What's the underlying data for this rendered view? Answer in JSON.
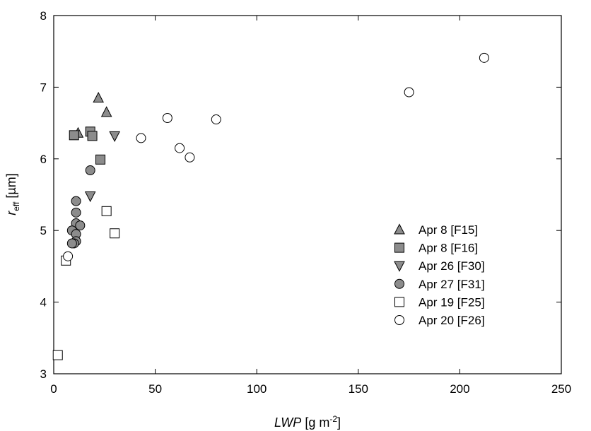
{
  "chart_data": {
    "type": "scatter",
    "xlabel": {
      "main": "LWP",
      "unit_pre": " [g m",
      "unit_sup": "-2",
      "unit_post": "]"
    },
    "ylabel": {
      "main": "r",
      "sub": "eff",
      "unit": " [µm]"
    },
    "xlim": [
      0,
      250
    ],
    "ylim": [
      3,
      8
    ],
    "xticks": [
      0,
      50,
      100,
      150,
      200,
      250
    ],
    "yticks": [
      3,
      4,
      5,
      6,
      7,
      8
    ],
    "grid": false,
    "legend_position": "lower-right",
    "series": [
      {
        "name": "Apr 8 [F15]",
        "marker": "triangle-up",
        "fill": "#8c8c8c",
        "points": [
          [
            12,
            6.36
          ],
          [
            22,
            6.85
          ],
          [
            26,
            6.65
          ]
        ]
      },
      {
        "name": "Apr 8 [F16]",
        "marker": "square",
        "fill": "#8c8c8c",
        "points": [
          [
            10,
            6.33
          ],
          [
            18,
            6.38
          ],
          [
            19,
            6.32
          ],
          [
            23,
            5.99
          ]
        ]
      },
      {
        "name": "Apr 26 [F30]",
        "marker": "triangle-down",
        "fill": "#8c8c8c",
        "points": [
          [
            18,
            5.48
          ],
          [
            30,
            6.32
          ]
        ]
      },
      {
        "name": "Apr 27 [F31]",
        "marker": "circle",
        "fill": "#8c8c8c",
        "points": [
          [
            18,
            5.84
          ],
          [
            11,
            5.41
          ],
          [
            11,
            5.25
          ],
          [
            11,
            5.1
          ],
          [
            13,
            5.07
          ],
          [
            9,
            5.0
          ],
          [
            11,
            4.95
          ],
          [
            11,
            4.85
          ],
          [
            10,
            4.82
          ],
          [
            9,
            4.82
          ]
        ]
      },
      {
        "name": "Apr 19 [F25]",
        "marker": "square",
        "fill": "#ffffff",
        "points": [
          [
            2,
            3.26
          ],
          [
            6,
            4.58
          ],
          [
            26,
            5.27
          ],
          [
            30,
            4.96
          ]
        ]
      },
      {
        "name": "Apr 20 [F26]",
        "marker": "circle",
        "fill": "#ffffff",
        "points": [
          [
            7,
            4.64
          ],
          [
            43,
            6.29
          ],
          [
            56,
            6.57
          ],
          [
            62,
            6.15
          ],
          [
            67,
            6.02
          ],
          [
            80,
            6.55
          ],
          [
            175,
            6.93
          ],
          [
            212,
            7.41
          ]
        ]
      }
    ]
  }
}
